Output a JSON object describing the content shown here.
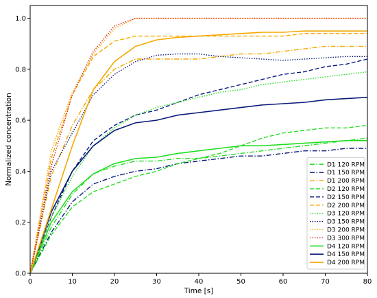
{
  "chart_data": {
    "type": "line",
    "title": "",
    "xlabel": "Time [s]",
    "ylabel": "Normalized concentration",
    "xlim": [
      0,
      80
    ],
    "ylim": [
      0,
      1.05
    ],
    "xticks": [
      0,
      10,
      20,
      30,
      40,
      50,
      60,
      70,
      80
    ],
    "yticks": [
      0.0,
      0.2,
      0.4,
      0.6,
      0.8,
      1.0
    ],
    "xtick_labels": [
      "0",
      "10",
      "20",
      "30",
      "40",
      "50",
      "60",
      "70",
      "80"
    ],
    "ytick_labels": [
      "0.0",
      "0.2",
      "0.4",
      "0.6",
      "0.8",
      "1.0"
    ],
    "grid": false,
    "legend_position": "lower-right",
    "series": [
      {
        "name": "D1 120 RPM",
        "color": "#22dd22",
        "dash": "dashdot",
        "x": [
          0,
          5,
          10,
          15,
          20,
          25,
          30,
          35,
          40,
          45,
          50,
          55,
          60,
          65,
          70,
          75,
          80
        ],
        "y": [
          0,
          0.18,
          0.31,
          0.39,
          0.42,
          0.44,
          0.44,
          0.45,
          0.45,
          0.46,
          0.47,
          0.48,
          0.49,
          0.5,
          0.51,
          0.52,
          0.53
        ]
      },
      {
        "name": "D1 150 RPM",
        "color": "#0a1a7a",
        "dash": "dashdot",
        "x": [
          0,
          5,
          10,
          15,
          20,
          25,
          30,
          35,
          40,
          45,
          50,
          55,
          60,
          65,
          70,
          75,
          80
        ],
        "y": [
          0,
          0.16,
          0.28,
          0.35,
          0.38,
          0.4,
          0.41,
          0.43,
          0.44,
          0.45,
          0.46,
          0.46,
          0.47,
          0.48,
          0.48,
          0.49,
          0.49
        ]
      },
      {
        "name": "D1 200 RPM",
        "color": "#f5a800",
        "dash": "dashdot",
        "x": [
          0,
          5,
          10,
          15,
          20,
          25,
          30,
          35,
          40,
          45,
          50,
          55,
          60,
          65,
          70,
          75,
          80
        ],
        "y": [
          0,
          0.38,
          0.58,
          0.72,
          0.8,
          0.84,
          0.84,
          0.84,
          0.84,
          0.85,
          0.86,
          0.86,
          0.87,
          0.88,
          0.89,
          0.89,
          0.89
        ]
      },
      {
        "name": "D2 120 RPM",
        "color": "#22dd22",
        "dash": "dashed",
        "x": [
          0,
          5,
          10,
          15,
          20,
          25,
          30,
          35,
          40,
          45,
          50,
          55,
          60,
          65,
          70,
          75,
          80
        ],
        "y": [
          0,
          0.15,
          0.26,
          0.32,
          0.35,
          0.38,
          0.4,
          0.43,
          0.45,
          0.47,
          0.5,
          0.53,
          0.55,
          0.56,
          0.57,
          0.57,
          0.58
        ]
      },
      {
        "name": "D2 150 RPM",
        "color": "#0a1a7a",
        "dash": "dashed",
        "x": [
          0,
          5,
          10,
          15,
          20,
          25,
          30,
          35,
          40,
          45,
          50,
          55,
          60,
          65,
          70,
          75,
          80
        ],
        "y": [
          0,
          0.22,
          0.4,
          0.52,
          0.58,
          0.62,
          0.64,
          0.67,
          0.7,
          0.72,
          0.74,
          0.76,
          0.78,
          0.79,
          0.81,
          0.82,
          0.84
        ]
      },
      {
        "name": "D2 200 RPM",
        "color": "#f5a800",
        "dash": "dashed",
        "x": [
          0,
          5,
          10,
          15,
          20,
          25,
          30,
          35,
          40,
          45,
          50,
          55,
          60,
          65,
          70,
          75,
          80
        ],
        "y": [
          0,
          0.45,
          0.7,
          0.85,
          0.91,
          0.93,
          0.93,
          0.93,
          0.93,
          0.93,
          0.93,
          0.93,
          0.93,
          0.94,
          0.94,
          0.94,
          0.94
        ]
      },
      {
        "name": "D3 120 RPM",
        "color": "#22dd22",
        "dash": "dotted",
        "x": [
          0,
          5,
          10,
          15,
          20,
          25,
          30,
          35,
          40,
          45,
          50,
          55,
          60,
          65,
          70,
          75,
          80
        ],
        "y": [
          0,
          0.22,
          0.38,
          0.5,
          0.57,
          0.62,
          0.65,
          0.67,
          0.69,
          0.71,
          0.72,
          0.74,
          0.75,
          0.76,
          0.77,
          0.78,
          0.79
        ]
      },
      {
        "name": "D3 150 RPM",
        "color": "#0a1a7a",
        "dash": "dotted",
        "x": [
          0,
          5,
          10,
          15,
          20,
          25,
          30,
          35,
          40,
          45,
          50,
          55,
          60,
          65,
          70,
          75,
          80
        ],
        "y": [
          0,
          0.4,
          0.55,
          0.7,
          0.78,
          0.83,
          0.855,
          0.86,
          0.86,
          0.85,
          0.845,
          0.84,
          0.835,
          0.84,
          0.845,
          0.85,
          0.85
        ]
      },
      {
        "name": "D3 200 RPM",
        "color": "#f5a800",
        "dash": "dotted",
        "x": [
          0,
          5,
          10,
          15,
          20,
          25,
          30,
          35,
          40,
          45,
          50,
          55,
          60,
          65,
          70,
          75,
          80
        ],
        "y": [
          0,
          0.48,
          0.71,
          0.86,
          0.96,
          1.0,
          1.0,
          1.0,
          1.0,
          1.0,
          1.0,
          1.0,
          1.0,
          1.0,
          1.0,
          1.0,
          1.0
        ]
      },
      {
        "name": "D3 300 RPM",
        "color": "#e02020",
        "dash": "dotted",
        "x": [
          0,
          5,
          10,
          15,
          20,
          25,
          30,
          35,
          40,
          45,
          50,
          55,
          60,
          65,
          70,
          75,
          80
        ],
        "y": [
          0,
          0.42,
          0.7,
          0.87,
          0.97,
          1.0,
          1.0,
          1.0,
          1.0,
          1.0,
          1.0,
          1.0,
          1.0,
          1.0,
          1.0,
          1.0,
          1.0
        ]
      },
      {
        "name": "D4 120 RPM",
        "color": "#22dd22",
        "dash": "solid",
        "x": [
          0,
          5,
          10,
          15,
          20,
          25,
          30,
          35,
          40,
          45,
          50,
          55,
          60,
          65,
          70,
          75,
          80
        ],
        "y": [
          0,
          0.2,
          0.32,
          0.39,
          0.43,
          0.45,
          0.455,
          0.47,
          0.48,
          0.49,
          0.5,
          0.5,
          0.505,
          0.51,
          0.515,
          0.52,
          0.52
        ]
      },
      {
        "name": "D4 150 RPM",
        "color": "#0a1a7a",
        "dash": "solid",
        "x": [
          0,
          5,
          10,
          15,
          20,
          25,
          30,
          35,
          40,
          45,
          50,
          55,
          60,
          65,
          70,
          75,
          80
        ],
        "y": [
          0,
          0.24,
          0.4,
          0.5,
          0.56,
          0.59,
          0.6,
          0.62,
          0.63,
          0.64,
          0.65,
          0.66,
          0.665,
          0.67,
          0.68,
          0.685,
          0.69
        ]
      },
      {
        "name": "D4 200 RPM",
        "color": "#f5a800",
        "dash": "solid",
        "x": [
          0,
          5,
          10,
          15,
          20,
          25,
          30,
          35,
          40,
          45,
          50,
          55,
          60,
          65,
          70,
          75,
          80
        ],
        "y": [
          0,
          0.25,
          0.5,
          0.72,
          0.83,
          0.89,
          0.915,
          0.925,
          0.93,
          0.935,
          0.94,
          0.945,
          0.945,
          0.95,
          0.95,
          0.95,
          0.95
        ]
      }
    ]
  }
}
